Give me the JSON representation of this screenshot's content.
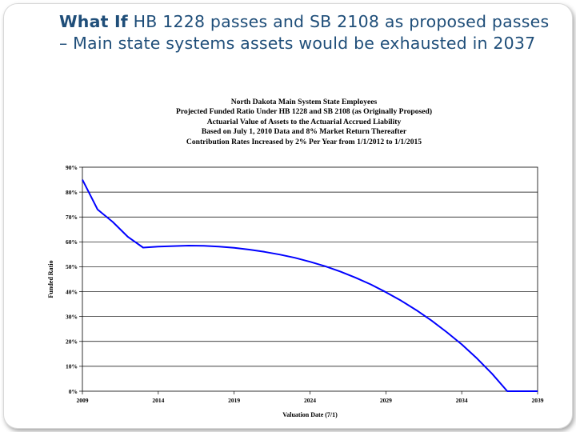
{
  "slide": {
    "title_lead": "What If",
    "title_rest": " HB 1228 passes and SB 2108 as proposed passes – Main state systems assets would be exhausted in 2037"
  },
  "chart_data": {
    "type": "line",
    "title_lines": [
      "North Dakota Main System State Employees",
      "Projected Funded Ratio Under HB 1228 and SB 2108 (as Originally Proposed)",
      "Actuarial Value of Assets to the Actuarial Accrued Liability",
      "Based on July 1, 2010 Data and 8% Market Return Thereafter",
      "Contribution Rates Increased by 2% Per Year from 1/1/2012 to 1/1/2015"
    ],
    "xlabel": "Valuation Date (7/1)",
    "ylabel": "Funded Ratio",
    "xlim": [
      2009,
      2039
    ],
    "ylim": [
      0,
      90
    ],
    "x_ticks": [
      2009,
      2014,
      2019,
      2024,
      2029,
      2034,
      2039
    ],
    "y_ticks": [
      0,
      10,
      20,
      30,
      40,
      50,
      60,
      70,
      80,
      90
    ],
    "y_tick_labels": [
      "0%",
      "10%",
      "20%",
      "30%",
      "40%",
      "50%",
      "60%",
      "70%",
      "80%",
      "90%"
    ],
    "grid": "horizontal",
    "line_color": "#0000ff",
    "series": [
      {
        "x": [
          2009,
          2010,
          2011,
          2012,
          2013,
          2014,
          2015,
          2016,
          2017,
          2018,
          2019,
          2020,
          2021,
          2022,
          2023,
          2024,
          2025,
          2026,
          2027,
          2028,
          2029,
          2030,
          2031,
          2032,
          2033,
          2034,
          2035,
          2036,
          2037,
          2038,
          2039
        ],
        "values": [
          85,
          73,
          68,
          62,
          57.7,
          58.1,
          58.3,
          58.5,
          58.4,
          58.1,
          57.6,
          56.9,
          56,
          54.9,
          53.6,
          52,
          50.2,
          48.1,
          45.6,
          42.9,
          39.8,
          36.4,
          32.6,
          28.4,
          23.8,
          18.8,
          13.2,
          7,
          0,
          0,
          0
        ]
      }
    ]
  }
}
